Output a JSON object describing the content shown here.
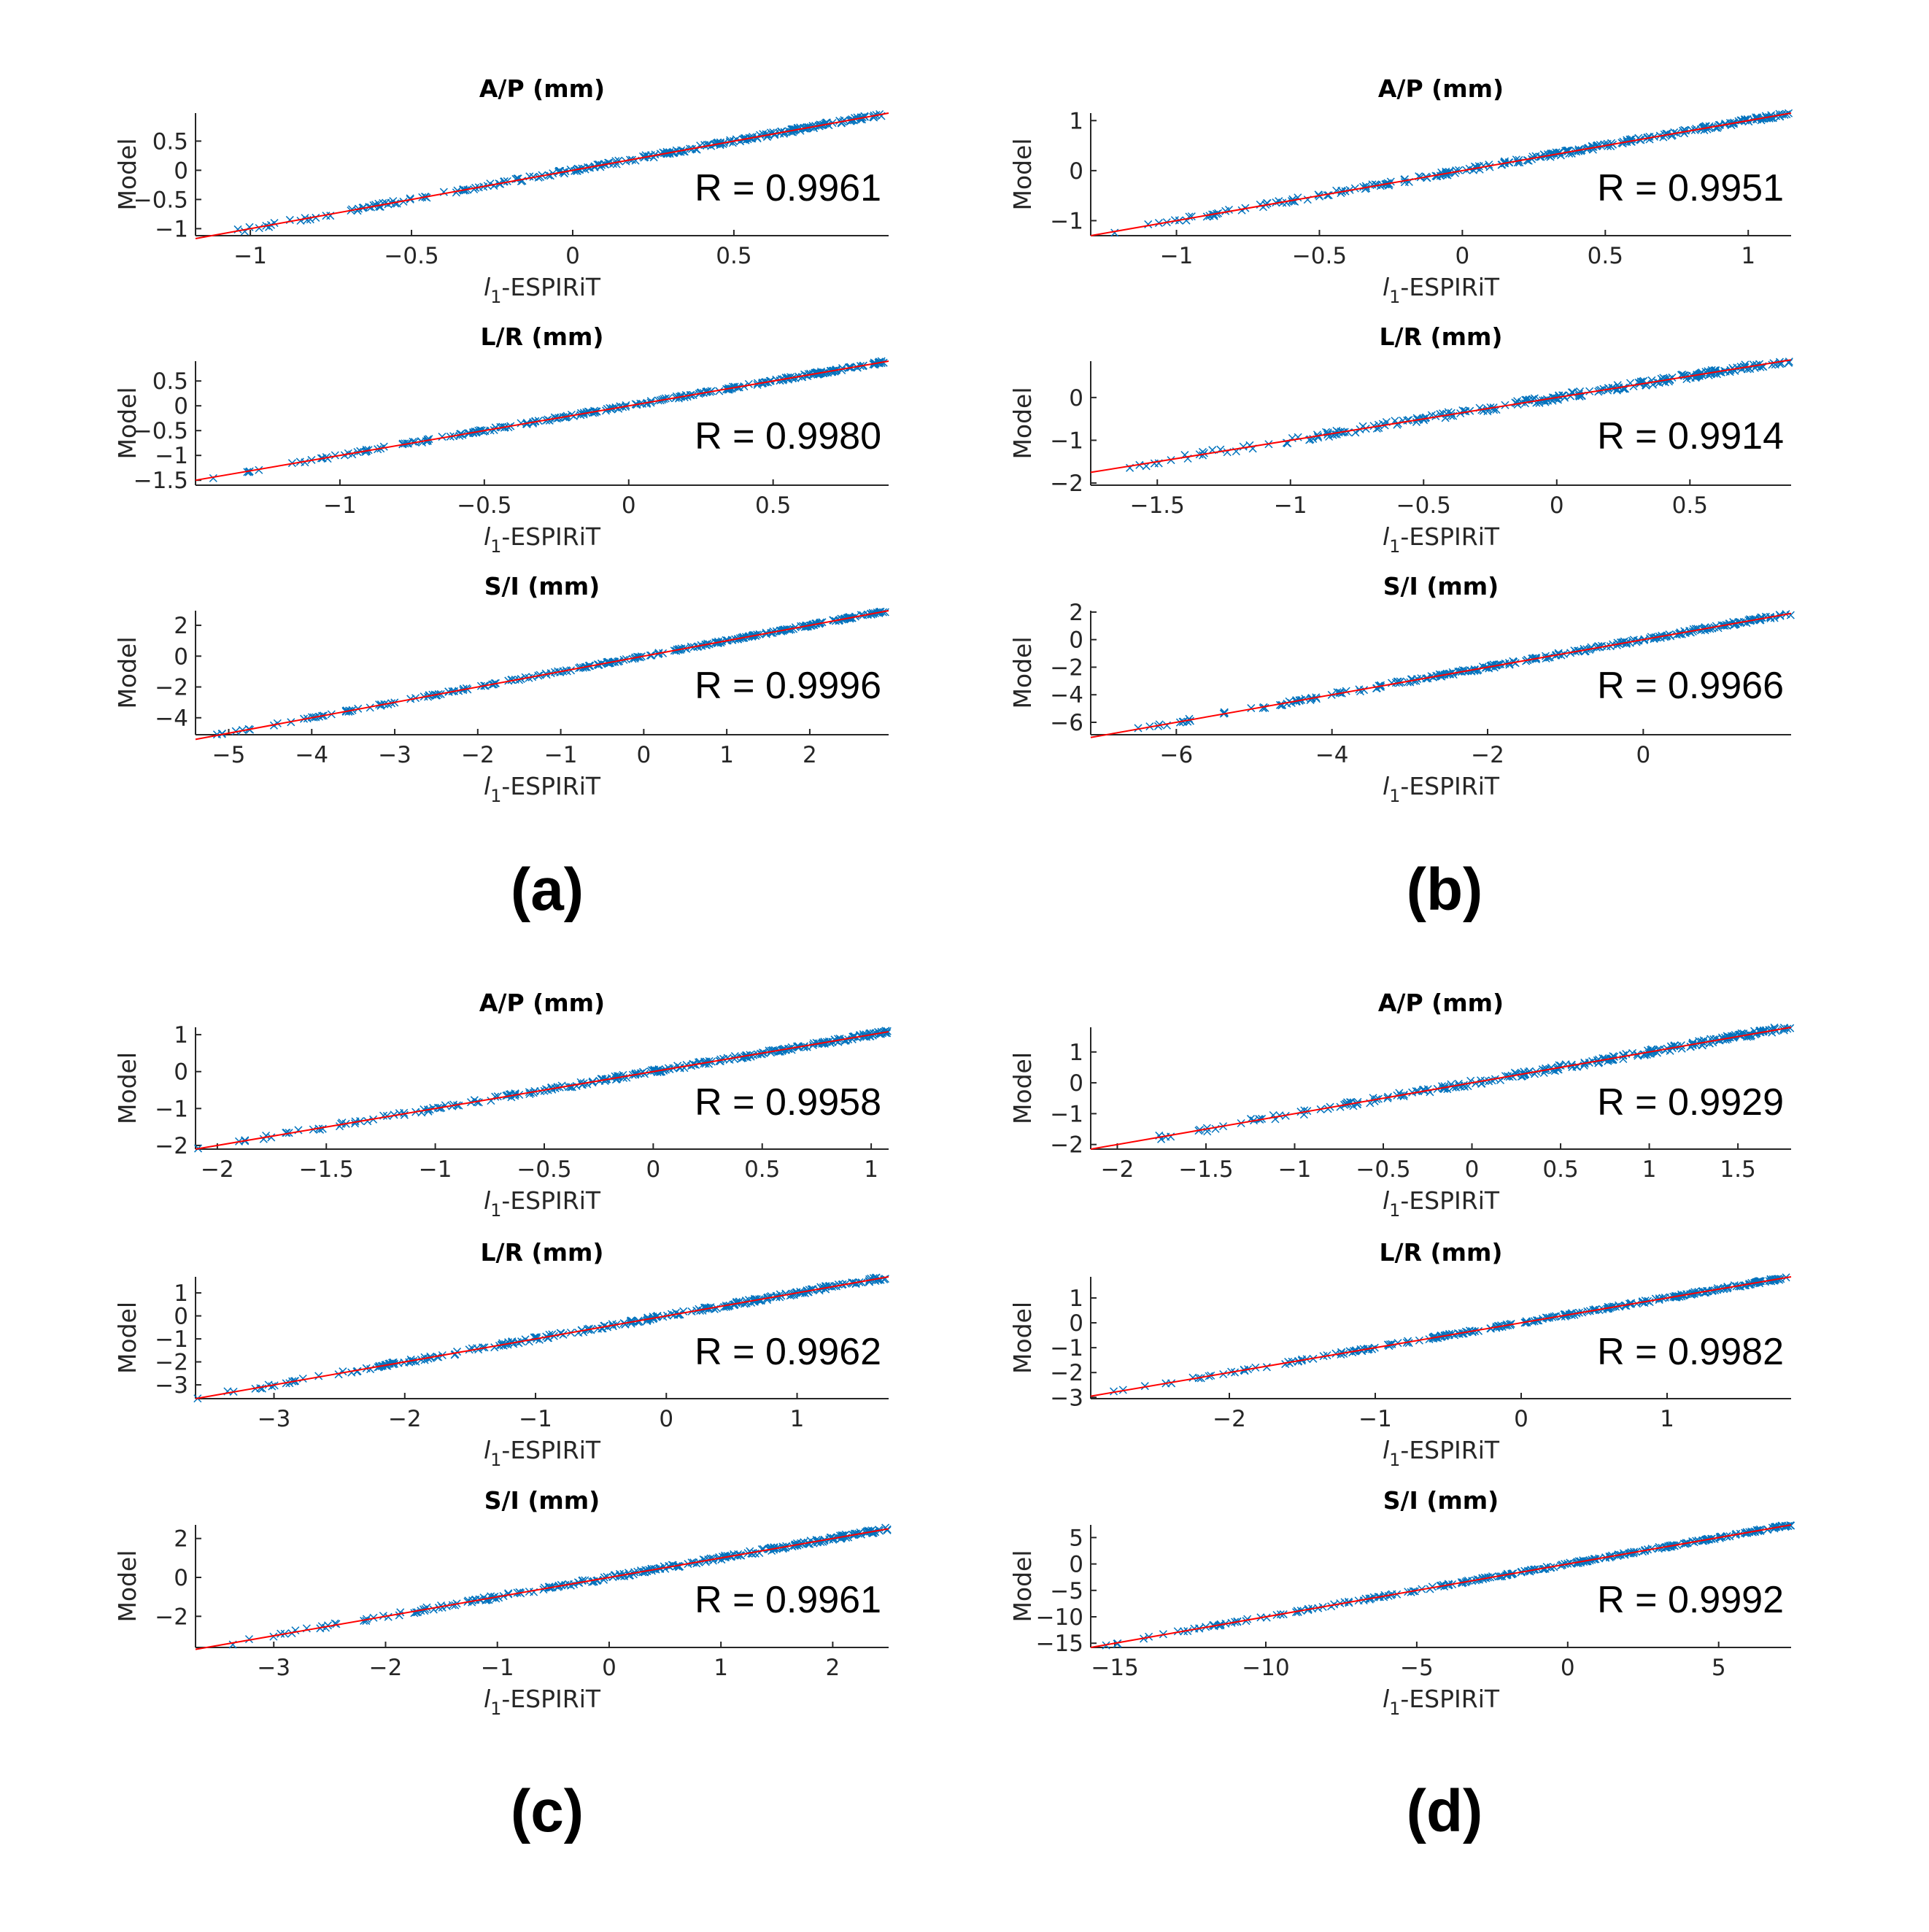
{
  "figure": {
    "panel_labels": [
      "(a)",
      "(b)",
      "(c)",
      "(d)"
    ],
    "colors": {
      "markers": "#0072BD",
      "fit_line": "#FF0000",
      "axes": "#262626"
    }
  },
  "chart_data": [
    {
      "panel": "(a)",
      "type": "scatter",
      "title": "A/P (mm)",
      "xlabel": "l1-ESPIRiT",
      "ylabel": "Model",
      "annotation": "R = 0.9961",
      "xlim": [
        -1.17,
        0.98
      ],
      "ylim": [
        -1.12,
        0.98
      ],
      "xticks": [
        -1,
        -0.5,
        0,
        0.5
      ],
      "yticks": [
        -1,
        -0.5,
        0,
        0.5
      ],
      "fit": [
        -1.17,
        0.98
      ],
      "grid": false,
      "seed": 11
    },
    {
      "panel": "(a)",
      "type": "scatter",
      "title": "L/R (mm)",
      "xlabel": "l1-ESPIRiT",
      "ylabel": "Model",
      "annotation": "R = 0.9980",
      "xlim": [
        -1.5,
        0.9
      ],
      "ylim": [
        -1.6,
        0.9
      ],
      "xticks": [
        -1,
        -0.5,
        0,
        0.5
      ],
      "yticks": [
        -1.5,
        -1,
        -0.5,
        0,
        0.5
      ],
      "fit": [
        -1.5,
        0.9
      ],
      "grid": false,
      "seed": 12
    },
    {
      "panel": "(a)",
      "type": "scatter",
      "title": "S/I (mm)",
      "xlabel": "l1-ESPIRiT",
      "ylabel": "Model",
      "annotation": "R = 0.9996",
      "xlim": [
        -5.4,
        2.95
      ],
      "ylim": [
        -5.1,
        2.95
      ],
      "xticks": [
        -5,
        -4,
        -3,
        -2,
        -1,
        0,
        1,
        2
      ],
      "yticks": [
        -4,
        -2,
        0,
        2
      ],
      "fit": [
        -5.4,
        2.95
      ],
      "grid": false,
      "seed": 13
    },
    {
      "panel": "(b)",
      "type": "scatter",
      "title": "A/P (mm)",
      "xlabel": "l1-ESPIRiT",
      "ylabel": "Model",
      "annotation": "R = 0.9951",
      "xlim": [
        -1.3,
        1.15
      ],
      "ylim": [
        -1.3,
        1.15
      ],
      "xticks": [
        -1,
        -0.5,
        0,
        0.5,
        1
      ],
      "yticks": [
        -1,
        0,
        1
      ],
      "fit": [
        -1.3,
        1.15
      ],
      "grid": false,
      "seed": 21
    },
    {
      "panel": "(b)",
      "type": "scatter",
      "title": "L/R (mm)",
      "xlabel": "l1-ESPIRiT",
      "ylabel": "Model",
      "annotation": "R = 0.9914",
      "xlim": [
        -1.75,
        0.88
      ],
      "ylim": [
        -2.05,
        0.85
      ],
      "xticks": [
        -1.5,
        -1,
        -0.5,
        0,
        0.5
      ],
      "yticks": [
        -2,
        -1,
        0
      ],
      "fit": [
        -1.75,
        0.88
      ],
      "grid": false,
      "seed": 22
    },
    {
      "panel": "(b)",
      "type": "scatter",
      "title": "S/I (mm)",
      "xlabel": "l1-ESPIRiT",
      "ylabel": "Model",
      "annotation": "R = 0.9966",
      "xlim": [
        -7.1,
        1.9
      ],
      "ylim": [
        -6.9,
        2.1
      ],
      "xticks": [
        -6,
        -4,
        -2,
        0
      ],
      "yticks": [
        -6,
        -4,
        -2,
        0,
        2
      ],
      "fit": [
        -7.1,
        1.9
      ],
      "grid": false,
      "seed": 23
    },
    {
      "panel": "(c)",
      "type": "scatter",
      "title": "A/P (mm)",
      "xlabel": "l1-ESPIRiT",
      "ylabel": "Model",
      "annotation": "R = 0.9958",
      "xlim": [
        -2.1,
        1.08
      ],
      "ylim": [
        -2.1,
        1.2
      ],
      "xticks": [
        -2,
        -1.5,
        -1,
        -0.5,
        0,
        0.5,
        1
      ],
      "yticks": [
        -2,
        -1,
        0,
        1
      ],
      "fit": [
        -2.1,
        1.08
      ],
      "grid": false,
      "seed": 31
    },
    {
      "panel": "(c)",
      "type": "scatter",
      "title": "L/R (mm)",
      "xlabel": "l1-ESPIRiT",
      "ylabel": "Model",
      "annotation": "R = 0.9962",
      "xlim": [
        -3.6,
        1.7
      ],
      "ylim": [
        -3.6,
        1.7
      ],
      "xticks": [
        -3,
        -2,
        -1,
        0,
        1
      ],
      "yticks": [
        -3,
        -2,
        -1,
        0,
        1
      ],
      "fit": [
        -3.6,
        1.7
      ],
      "grid": false,
      "seed": 32
    },
    {
      "panel": "(c)",
      "type": "scatter",
      "title": "S/I (mm)",
      "xlabel": "l1-ESPIRiT",
      "ylabel": "Model",
      "annotation": "R = 0.9961",
      "xlim": [
        -3.7,
        2.5
      ],
      "ylim": [
        -3.6,
        2.7
      ],
      "xticks": [
        -3,
        -2,
        -1,
        0,
        1,
        2
      ],
      "yticks": [
        -2,
        0,
        2
      ],
      "fit": [
        -3.7,
        2.5
      ],
      "grid": false,
      "seed": 33
    },
    {
      "panel": "(d)",
      "type": "scatter",
      "title": "A/P (mm)",
      "xlabel": "l1-ESPIRiT",
      "ylabel": "Model",
      "annotation": "R = 0.9929",
      "xlim": [
        -2.15,
        1.8
      ],
      "ylim": [
        -2.15,
        1.8
      ],
      "xticks": [
        -2,
        -1.5,
        -1,
        -0.5,
        0,
        0.5,
        1,
        1.5
      ],
      "yticks": [
        -2,
        -1,
        0,
        1
      ],
      "fit": [
        -2.15,
        1.8
      ],
      "grid": false,
      "seed": 41
    },
    {
      "panel": "(d)",
      "type": "scatter",
      "title": "L/R (mm)",
      "xlabel": "l1-ESPIRiT",
      "ylabel": "Model",
      "annotation": "R = 0.9982",
      "xlim": [
        -2.95,
        1.85
      ],
      "ylim": [
        -3.05,
        1.85
      ],
      "xticks": [
        -2,
        -1,
        0,
        1
      ],
      "yticks": [
        -3,
        -2,
        -1,
        0,
        1
      ],
      "fit": [
        -2.95,
        1.85
      ],
      "grid": false,
      "seed": 42
    },
    {
      "panel": "(d)",
      "type": "scatter",
      "title": "S/I (mm)",
      "xlabel": "l1-ESPIRiT",
      "ylabel": "Model",
      "annotation": "R = 0.9992",
      "xlim": [
        -15.8,
        7.4
      ],
      "ylim": [
        -15.8,
        7.4
      ],
      "xticks": [
        -15,
        -10,
        -5,
        0,
        5
      ],
      "yticks": [
        -15,
        -10,
        -5,
        0,
        5
      ],
      "fit": [
        -15.8,
        7.4
      ],
      "grid": false,
      "seed": 43
    }
  ]
}
